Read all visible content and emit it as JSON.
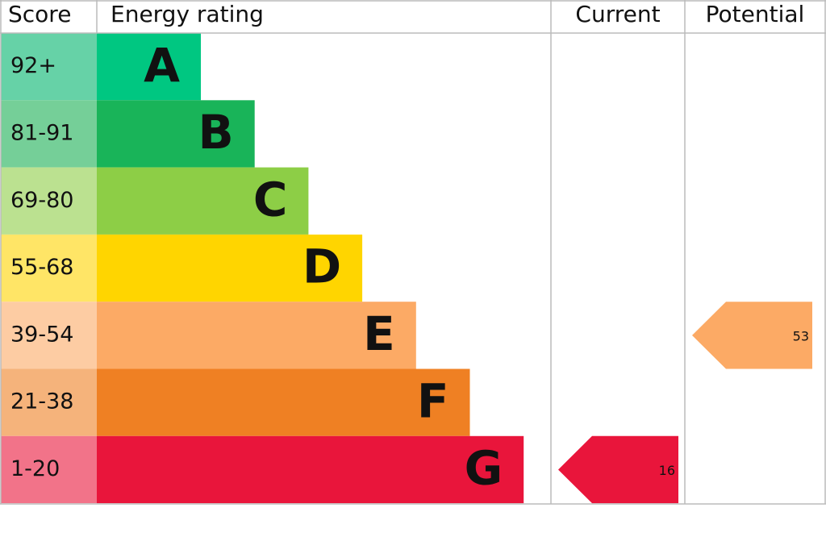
{
  "header": {
    "score": "Score",
    "rating": "Energy rating",
    "current": "Current",
    "potential": "Potential"
  },
  "bands": [
    {
      "score": "92+",
      "letter": "A",
      "color": "#00c781",
      "score_color": "#66d2a7"
    },
    {
      "score": "81-91",
      "letter": "B",
      "color": "#19b459",
      "score_color": "#75cf98"
    },
    {
      "score": "69-80",
      "letter": "C",
      "color": "#8dce46",
      "score_color": "#bbe190"
    },
    {
      "score": "55-68",
      "letter": "D",
      "color": "#ffd500",
      "score_color": "#ffe566"
    },
    {
      "score": "39-54",
      "letter": "E",
      "color": "#fcaa65",
      "score_color": "#fdcca3"
    },
    {
      "score": "21-38",
      "letter": "F",
      "color": "#ef8023",
      "score_color": "#f5b37b"
    },
    {
      "score": "1-20",
      "letter": "G",
      "color": "#e9153b",
      "score_color": "#f27389"
    }
  ],
  "current": 16,
  "potential": 53
}
